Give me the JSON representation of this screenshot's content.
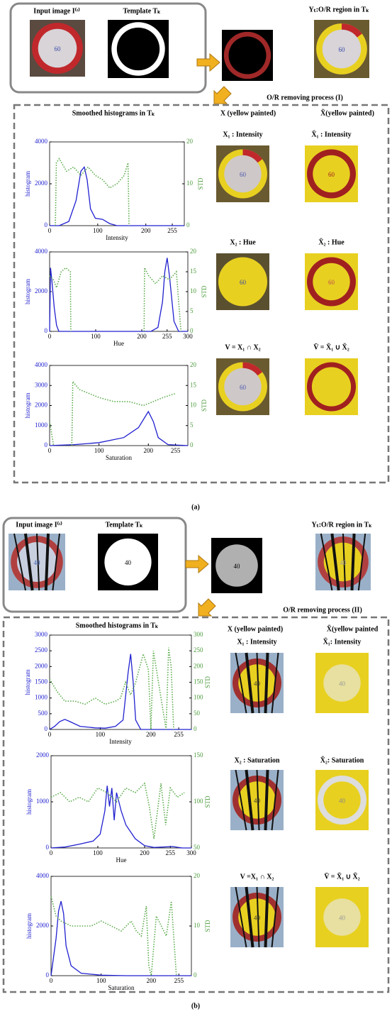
{
  "panels": [
    {
      "top": {
        "input_label": "Input image I⁽ᵗ⁾",
        "template_label": "Template Tₖ",
        "region_label": "Yₜ:O/R region in Tₖ"
      },
      "sign_text": "60",
      "process_label": "O/R removing process (I)",
      "hist_title": "Smoothed histograms in Tₖ",
      "col_headers": [
        "X (yellow painted)",
        "X̄(yellow painted)"
      ],
      "image_labels": [
        [
          "X₁ : Intensity",
          "X̄₁ : Intensity"
        ],
        [
          "X₂ : Hue",
          "X̄₂ : Hue"
        ],
        [
          "V = X₁ ∩ X₂",
          "V̄ = X̄₁ ∪ X̄₂"
        ]
      ],
      "caption": "(a)",
      "charts": [
        {
          "type": "line",
          "x_label": "Intensity",
          "y_label": "histogram",
          "y2_label": "STD",
          "xlim": [
            0,
            280
          ],
          "xticks": [
            0,
            100,
            200,
            255
          ],
          "ylim": [
            0,
            4000
          ],
          "yticks": [
            0,
            2000,
            4000
          ],
          "y2lim": [
            0,
            20
          ],
          "y2ticks": [
            0,
            10,
            20
          ],
          "series": [
            {
              "color": "#2020d0",
              "x": [
                0,
                20,
                40,
                55,
                65,
                72,
                78,
                85,
                95,
                110,
                125,
                140,
                160,
                200,
                280
              ],
              "values": [
                0,
                0,
                200,
                1200,
                2600,
                2800,
                2200,
                800,
                350,
                300,
                100,
                0,
                0,
                0,
                0
              ]
            },
            {
              "color": "#5aaa4a",
              "style": "dotted",
              "axis": "y2",
              "x": [
                12,
                14,
                20,
                35,
                50,
                65,
                80,
                95,
                110,
                125,
                140,
                155,
                163,
                165
              ],
              "values": [
                0,
                15,
                16,
                13,
                14,
                12,
                14,
                12,
                11,
                9,
                10,
                12,
                15,
                0
              ]
            }
          ]
        },
        {
          "type": "line",
          "x_label": "Hue",
          "y_label": "histogram",
          "y2_label": "STD",
          "xlim": [
            0,
            300
          ],
          "xticks": [
            0,
            100,
            200,
            255,
            300
          ],
          "ylim": [
            0,
            4000
          ],
          "yticks": [
            0,
            2000,
            4000
          ],
          "y2lim": [
            0,
            20
          ],
          "y2ticks": [
            0,
            5,
            10,
            15,
            20
          ],
          "series": [
            {
              "color": "#2020d0",
              "x": [
                0,
                2,
                5,
                10,
                15,
                20,
                30,
                220,
                235,
                245,
                250,
                255,
                260,
                270,
                280,
                300
              ],
              "values": [
                0,
                3200,
                2500,
                1200,
                300,
                0,
                0,
                0,
                200,
                1500,
                3000,
                3700,
                2800,
                500,
                0,
                0
              ]
            },
            {
              "color": "#5aaa4a",
              "style": "dotted",
              "axis": "y2",
              "x": [
                0,
                8,
                15,
                25,
                35,
                45,
                46,
                100,
                205,
                206,
                215,
                230,
                245,
                260,
                275,
                285
              ],
              "values": [
                14,
                13,
                11,
                15,
                16,
                15,
                0,
                null,
                0,
                16,
                14,
                12,
                14,
                13,
                15,
                0
              ]
            }
          ]
        },
        {
          "type": "line",
          "x_label": "Saturation",
          "y_label": "histogram",
          "y2_label": "STD",
          "xlim": [
            0,
            280
          ],
          "xticks": [
            0,
            100,
            200,
            255
          ],
          "ylim": [
            0,
            4000
          ],
          "yticks": [
            0,
            1000,
            2000,
            3000,
            4000
          ],
          "y2lim": [
            0,
            20
          ],
          "y2ticks": [
            0,
            5,
            10,
            15,
            20
          ],
          "series": [
            {
              "color": "#2020d0",
              "x": [
                0,
                20,
                50,
                100,
                150,
                180,
                195,
                200,
                210,
                220,
                240,
                280
              ],
              "values": [
                0,
                20,
                50,
                150,
                400,
                900,
                1500,
                1700,
                1200,
                400,
                50,
                0
              ]
            },
            {
              "color": "#5aaa4a",
              "style": "dotted",
              "axis": "y2",
              "x": [
                0,
                4,
                8,
                12,
                45,
                47,
                60,
                80,
                100,
                130,
                160,
                190,
                210,
                230,
                255
              ],
              "values": [
                6,
                3,
                0,
                null,
                0,
                16,
                14,
                13,
                12,
                11,
                11,
                10,
                11,
                12,
                13
              ]
            }
          ]
        }
      ]
    },
    {
      "top": {
        "input_label": "Input image I⁽ᵗ⁾",
        "template_label": "Template Tₖ",
        "region_label": "Yₜ:O/R region in Tₖ"
      },
      "sign_text": "40",
      "process_label": "O/R removing process (II)",
      "hist_title": "Smoothed histograms in Tₖ",
      "col_headers": [
        "X (yellow painted)",
        "X̄(yellow painted"
      ],
      "image_labels": [
        [
          "X₁ : Intensity",
          "X̄₁: Intensity"
        ],
        [
          "X₂ : Saturation",
          "X̄₂: Saturation"
        ],
        [
          "V =X₁ ∩ X₂",
          "V̄ = X̄₁ ∪ X̄₂"
        ]
      ],
      "caption": "(b)",
      "charts": [
        {
          "type": "line",
          "x_label": "Intensity",
          "y_label": "histogram",
          "y2_label": "STD",
          "xlim": [
            0,
            280
          ],
          "xticks": [
            0,
            100,
            200,
            255
          ],
          "ylim": [
            0,
            3000
          ],
          "yticks": [
            0,
            500,
            1000,
            1500,
            2000,
            2500,
            3000
          ],
          "y2lim": [
            0,
            300
          ],
          "y2ticks": [
            0,
            50,
            100,
            150,
            200,
            250,
            300
          ],
          "series": [
            {
              "color": "#2020d0",
              "x": [
                0,
                10,
                20,
                30,
                40,
                60,
                90,
                110,
                130,
                145,
                155,
                160,
                165,
                170,
                180,
                200,
                280
              ],
              "values": [
                0,
                100,
                250,
                320,
                250,
                100,
                50,
                40,
                100,
                300,
                1800,
                2400,
                1500,
                300,
                0,
                0,
                0
              ]
            },
            {
              "color": "#5aaa4a",
              "style": "dotted",
              "axis": "y2",
              "x": [
                0,
                15,
                30,
                50,
                70,
                90,
                110,
                130,
                140,
                150,
                160,
                170,
                185,
                195,
                200,
                205,
                230,
                235,
                240,
                245
              ],
              "values": [
                160,
                120,
                90,
                90,
                80,
                100,
                80,
                90,
                100,
                150,
                110,
                150,
                240,
                190,
                0,
                250,
                0,
                260,
                200,
                0
              ]
            }
          ]
        },
        {
          "type": "line",
          "x_label": "Hue",
          "y_label": "histogram",
          "y2_label": "STD",
          "xlim": [
            0,
            300
          ],
          "xticks": [
            0,
            100,
            200,
            255,
            300
          ],
          "ylim": [
            0,
            2000
          ],
          "yticks": [
            0,
            1000,
            2000
          ],
          "y2lim": [
            50,
            150
          ],
          "y2ticks": [
            50,
            100,
            150
          ],
          "series": [
            {
              "color": "#2020d0",
              "x": [
                0,
                30,
                60,
                90,
                105,
                115,
                120,
                125,
                130,
                135,
                140,
                150,
                160,
                180,
                200,
                220,
                260,
                280,
                300
              ],
              "values": [
                0,
                20,
                80,
                150,
                300,
                800,
                1350,
                900,
                1300,
                600,
                1200,
                800,
                500,
                200,
                50,
                10,
                30,
                0,
                0
              ]
            },
            {
              "color": "#5aaa4a",
              "style": "dotted",
              "axis": "y2",
              "x": [
                0,
                20,
                40,
                60,
                80,
                100,
                120,
                140,
                160,
                180,
                200,
                210,
                220,
                235,
                245,
                255,
                270,
                285
              ],
              "values": [
                105,
                110,
                100,
                105,
                100,
                115,
                110,
                100,
                115,
                110,
                120,
                95,
                60,
                120,
                75,
                115,
                105,
                110
              ]
            }
          ]
        },
        {
          "type": "line",
          "x_label": "Saturation",
          "y_label": "histogram",
          "y2_label": "STD",
          "xlim": [
            0,
            280
          ],
          "xticks": [
            0,
            100,
            200,
            255
          ],
          "ylim": [
            0,
            4000
          ],
          "yticks": [
            0,
            2000,
            4000
          ],
          "y2lim": [
            0,
            20
          ],
          "y2ticks": [
            0,
            10,
            20
          ],
          "series": [
            {
              "color": "#2020d0",
              "x": [
                0,
                10,
                15,
                20,
                25,
                30,
                40,
                60,
                100,
                150,
                280
              ],
              "values": [
                0,
                1500,
                2600,
                3000,
                2500,
                1200,
                400,
                100,
                20,
                0,
                0
              ]
            },
            {
              "color": "#5aaa4a",
              "style": "dotted",
              "axis": "y2",
              "x": [
                0,
                5,
                10,
                20,
                40,
                60,
                80,
                100,
                120,
                140,
                150,
                160,
                170,
                180,
                190,
                195,
                200,
                210,
                230,
                240,
                250
              ],
              "values": [
                16,
                14,
                12,
                11,
                10,
                10,
                10,
                11,
                10,
                9,
                10,
                11,
                9,
                8,
                14,
                2,
                0,
                12,
                8,
                15,
                0
              ]
            }
          ]
        }
      ]
    }
  ]
}
